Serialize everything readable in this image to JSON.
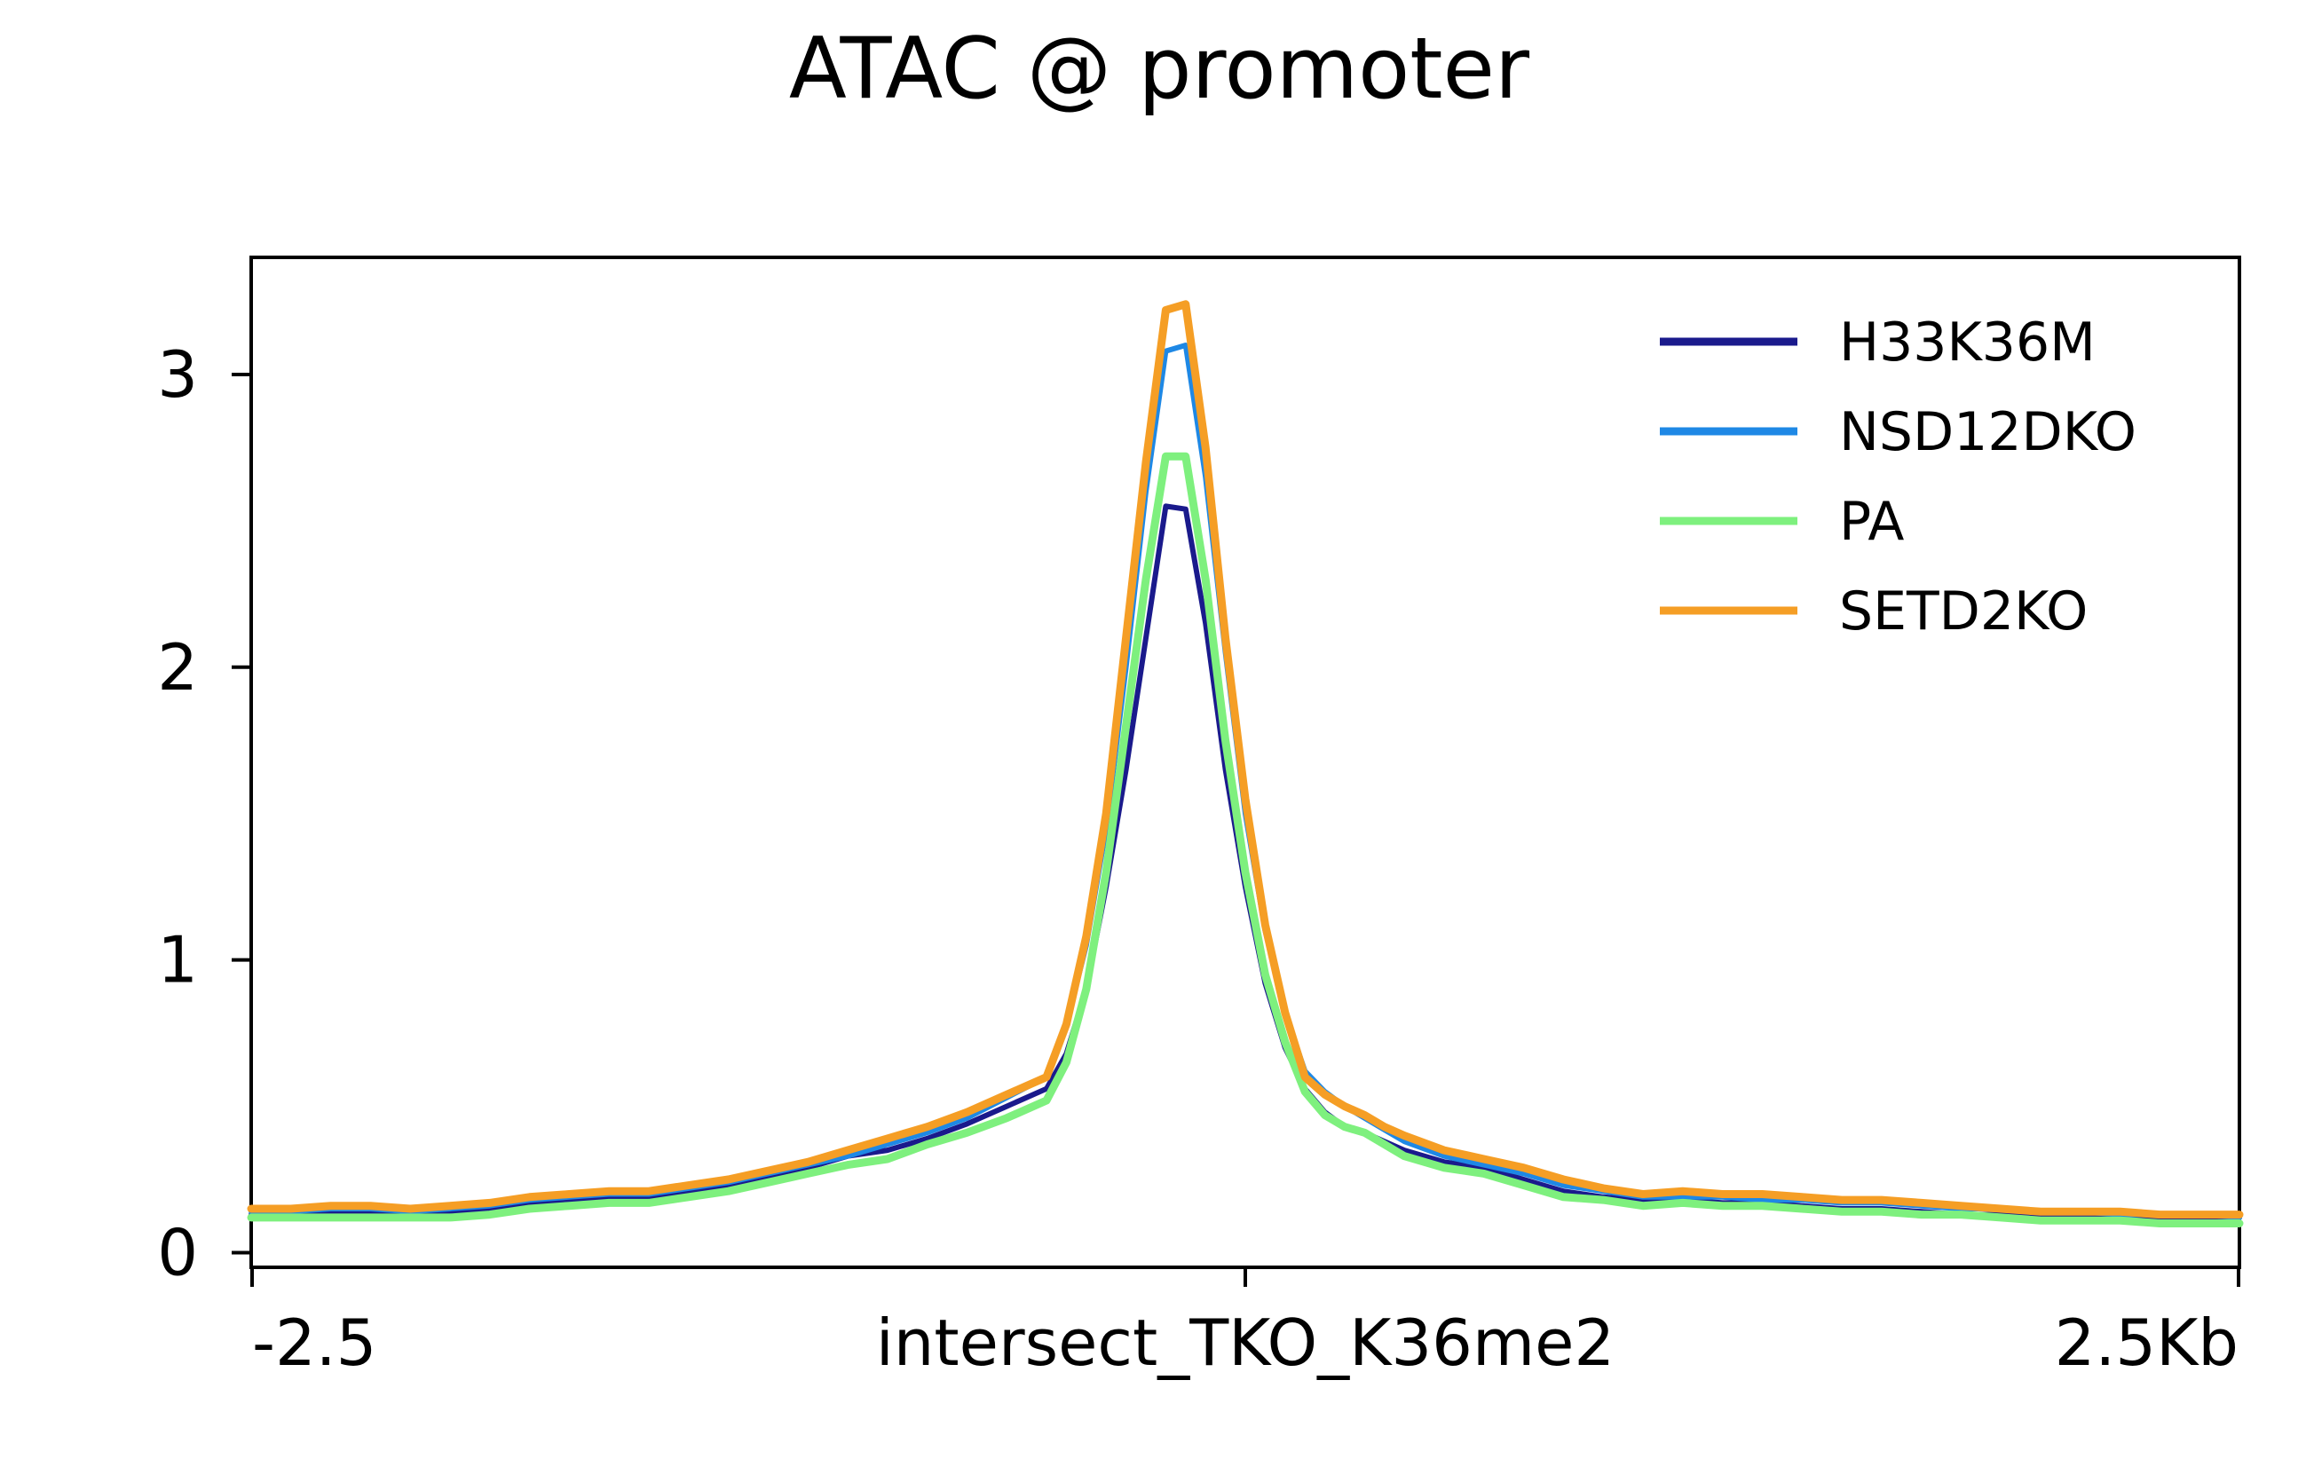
{
  "chart_data": {
    "type": "line",
    "title": "ATAC @ promoter",
    "x_tick_labels": [
      "-2.5",
      "intersect_TKO_K36me2",
      "2.5Kb"
    ],
    "x_ticks": [
      -2.5,
      0,
      2.5
    ],
    "xlim": [
      -2.5,
      2.5
    ],
    "y_ticks": [
      0,
      1,
      2,
      3
    ],
    "y_tick_labels": [
      "0",
      "1",
      "2",
      "3"
    ],
    "ylim": [
      -0.05,
      3.4
    ],
    "x_unit": "Kb",
    "legend_position": "top-right",
    "x": [
      -2.5,
      -2.4,
      -2.3,
      -2.2,
      -2.1,
      -2.0,
      -1.9,
      -1.8,
      -1.7,
      -1.6,
      -1.5,
      -1.4,
      -1.3,
      -1.2,
      -1.1,
      -1.0,
      -0.9,
      -0.8,
      -0.7,
      -0.6,
      -0.5,
      -0.45,
      -0.4,
      -0.35,
      -0.3,
      -0.25,
      -0.2,
      -0.15,
      -0.1,
      -0.05,
      0.0,
      0.05,
      0.1,
      0.15,
      0.2,
      0.25,
      0.3,
      0.35,
      0.4,
      0.5,
      0.6,
      0.7,
      0.8,
      0.9,
      1.0,
      1.1,
      1.2,
      1.3,
      1.4,
      1.5,
      1.6,
      1.7,
      1.8,
      1.9,
      2.0,
      2.1,
      2.2,
      2.3,
      2.4,
      2.5
    ],
    "series": [
      {
        "name": "H33K36M",
        "color": "#1a1a8c",
        "values": [
          0.13,
          0.13,
          0.14,
          0.14,
          0.13,
          0.14,
          0.15,
          0.17,
          0.18,
          0.19,
          0.19,
          0.21,
          0.23,
          0.26,
          0.29,
          0.33,
          0.35,
          0.39,
          0.44,
          0.5,
          0.56,
          0.68,
          0.9,
          1.25,
          1.65,
          2.1,
          2.55,
          2.54,
          2.15,
          1.65,
          1.25,
          0.92,
          0.7,
          0.56,
          0.48,
          0.43,
          0.41,
          0.38,
          0.35,
          0.31,
          0.29,
          0.25,
          0.21,
          0.19,
          0.18,
          0.18,
          0.17,
          0.17,
          0.16,
          0.15,
          0.15,
          0.14,
          0.13,
          0.13,
          0.12,
          0.12,
          0.12,
          0.12,
          0.12,
          0.12
        ]
      },
      {
        "name": "NSD12DKO",
        "color": "#1e88e5",
        "values": [
          0.14,
          0.14,
          0.15,
          0.15,
          0.14,
          0.15,
          0.16,
          0.18,
          0.19,
          0.2,
          0.2,
          0.22,
          0.24,
          0.27,
          0.3,
          0.33,
          0.37,
          0.41,
          0.46,
          0.53,
          0.6,
          0.78,
          1.05,
          1.45,
          2.0,
          2.6,
          3.08,
          3.1,
          2.65,
          2.05,
          1.5,
          1.1,
          0.82,
          0.62,
          0.55,
          0.5,
          0.46,
          0.42,
          0.38,
          0.33,
          0.3,
          0.27,
          0.23,
          0.21,
          0.19,
          0.19,
          0.19,
          0.18,
          0.18,
          0.17,
          0.17,
          0.16,
          0.15,
          0.15,
          0.14,
          0.14,
          0.13,
          0.13,
          0.13,
          0.12
        ]
      },
      {
        "name": "PA",
        "color": "#7ef07e",
        "values": [
          0.12,
          0.12,
          0.12,
          0.12,
          0.12,
          0.12,
          0.13,
          0.15,
          0.16,
          0.17,
          0.17,
          0.19,
          0.21,
          0.24,
          0.27,
          0.3,
          0.32,
          0.37,
          0.41,
          0.46,
          0.52,
          0.65,
          0.9,
          1.3,
          1.8,
          2.3,
          2.72,
          2.72,
          2.3,
          1.75,
          1.3,
          0.95,
          0.72,
          0.55,
          0.47,
          0.43,
          0.41,
          0.37,
          0.33,
          0.29,
          0.27,
          0.23,
          0.19,
          0.18,
          0.16,
          0.17,
          0.16,
          0.16,
          0.15,
          0.14,
          0.14,
          0.13,
          0.13,
          0.12,
          0.11,
          0.11,
          0.11,
          0.1,
          0.1,
          0.1
        ]
      },
      {
        "name": "SETD2KO",
        "color": "#f59e25",
        "values": [
          0.15,
          0.15,
          0.16,
          0.16,
          0.15,
          0.16,
          0.17,
          0.19,
          0.2,
          0.21,
          0.21,
          0.23,
          0.25,
          0.28,
          0.31,
          0.35,
          0.39,
          0.43,
          0.48,
          0.54,
          0.6,
          0.78,
          1.08,
          1.5,
          2.1,
          2.7,
          3.22,
          3.24,
          2.75,
          2.1,
          1.55,
          1.12,
          0.82,
          0.6,
          0.54,
          0.5,
          0.47,
          0.43,
          0.4,
          0.35,
          0.32,
          0.29,
          0.25,
          0.22,
          0.2,
          0.21,
          0.2,
          0.2,
          0.19,
          0.18,
          0.18,
          0.17,
          0.16,
          0.15,
          0.14,
          0.14,
          0.14,
          0.13,
          0.13,
          0.13
        ]
      }
    ]
  }
}
